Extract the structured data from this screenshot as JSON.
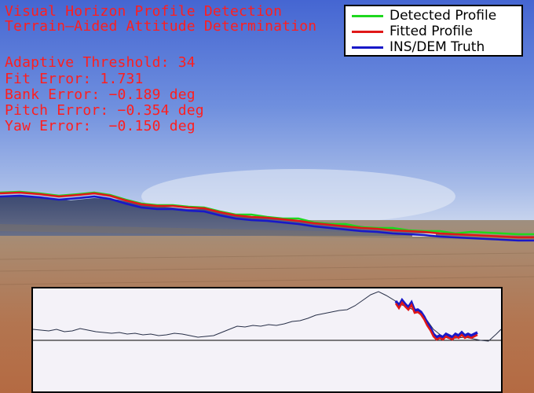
{
  "hud": {
    "title": "Visual Horizon Profile Detection",
    "subtitle": "Terrain–Aided Attitude Determination",
    "threshold": "Adaptive Threshold: 34",
    "fit_error": "Fit Error: 1.731",
    "bank_error": "Bank Error: −0.189 deg",
    "pitch_error": "Pitch Error: −0.354 deg",
    "yaw_error": "Yaw Error:  −0.150 deg"
  },
  "legend": [
    {
      "label": "Detected Profile",
      "color": "#1ed81e"
    },
    {
      "label": "Fitted Profile",
      "color": "#e01818"
    },
    {
      "label": "INS/DEM Truth",
      "color": "#1818c8"
    }
  ],
  "colors": {
    "hud_text": "#ff1e1e",
    "sky_top": "#4d6fd4",
    "sky_horizon": "#c9d7ef",
    "hills": "#4f5a78",
    "ground_far": "#a98f78",
    "ground_near": "#b16d44"
  },
  "inset": {
    "baseline_label": ""
  }
}
